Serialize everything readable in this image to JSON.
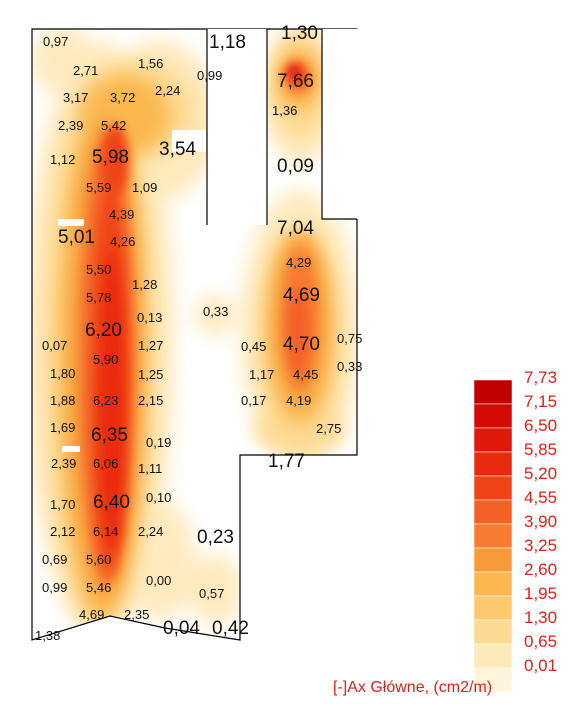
{
  "legend": {
    "caption": "[-]Ax Główne, (cm2/m)",
    "levels": [
      {
        "value": "7,73",
        "color": "#c00000"
      },
      {
        "value": "7,15",
        "color": "#d30a05"
      },
      {
        "value": "6,50",
        "color": "#e0190a"
      },
      {
        "value": "5,85",
        "color": "#ea2a0e"
      },
      {
        "value": "5,20",
        "color": "#f04418"
      },
      {
        "value": "4,55",
        "color": "#f46126"
      },
      {
        "value": "3,90",
        "color": "#f77c30"
      },
      {
        "value": "3,25",
        "color": "#f89a3a"
      },
      {
        "value": "2,60",
        "color": "#fab84f"
      },
      {
        "value": "1,95",
        "color": "#fcc96e"
      },
      {
        "value": "1,30",
        "color": "#fdda93"
      },
      {
        "value": "0,65",
        "color": "#fee9bb"
      },
      {
        "value": "0,01",
        "color": "#fff5dd"
      }
    ]
  },
  "values": [
    "0,97",
    "1,18",
    "1,30",
    "2,71",
    "1,56",
    "0,99",
    "7,66",
    "3,17",
    "3,72",
    "2,24",
    "1,36",
    "2,39",
    "5,42",
    "3,54",
    "1,12",
    "5,98",
    "0,09",
    "5,59",
    "1,09",
    "4,39",
    "7,04",
    "5,01",
    "4,26",
    "4,29",
    "5,50",
    "1,28",
    "4,69",
    "5,78",
    "0,33",
    "0,13",
    "6,20",
    "0,07",
    "1,27",
    "0,45",
    "4,70",
    "0,75",
    "5,90",
    "0,33",
    "1,80",
    "1,25",
    "1,17",
    "4,45",
    "1,88",
    "6,23",
    "2,15",
    "0,17",
    "4,19",
    "1,69",
    "6,35",
    "2,75",
    "0,19",
    "2,39",
    "6,06",
    "1,77",
    "1,11",
    "1,70",
    "6,40",
    "0,10",
    "2,12",
    "6,14",
    "2,24",
    "0,23",
    "0,69",
    "5,60",
    "0,00",
    "0,99",
    "5,46",
    "0,57",
    "4,69",
    "2,35",
    "0,04",
    "0,42",
    "1,38"
  ]
}
